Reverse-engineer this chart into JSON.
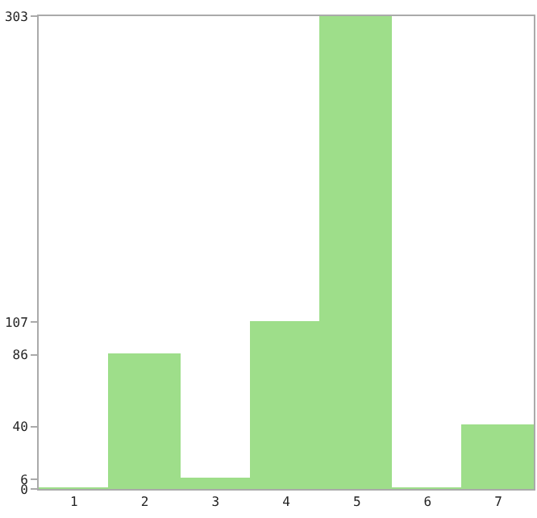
{
  "chart_data": {
    "type": "bar",
    "categories": [
      "1",
      "2",
      "3",
      "4",
      "5",
      "6",
      "7"
    ],
    "values": [
      0,
      86,
      6,
      107,
      303,
      0,
      40
    ],
    "color": "#9ede8a",
    "ylim": [
      0,
      303
    ],
    "yticks": [
      0,
      6,
      40,
      86,
      107,
      303
    ],
    "grid": false
  }
}
